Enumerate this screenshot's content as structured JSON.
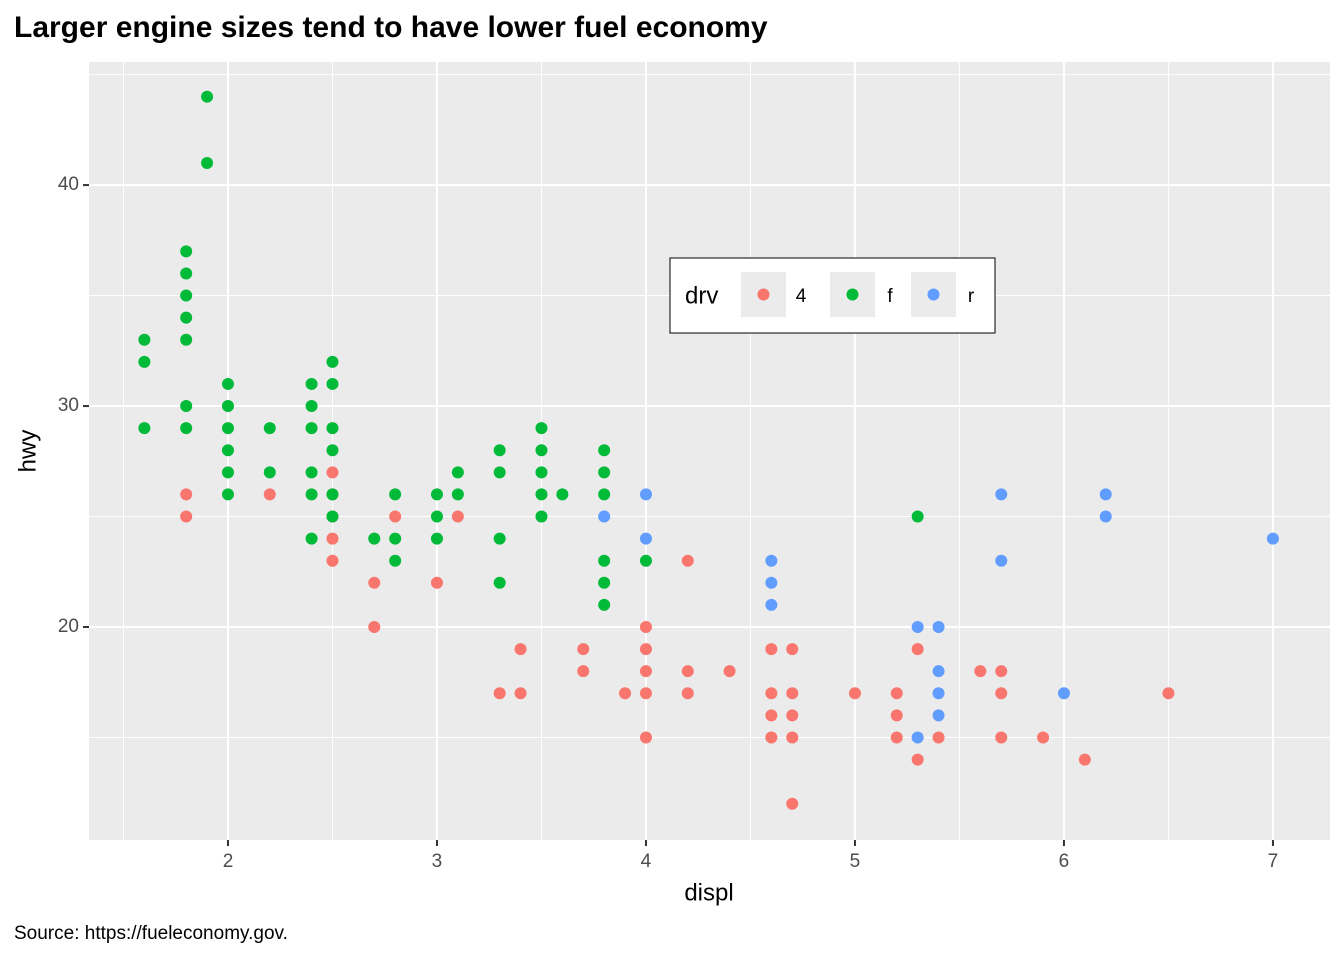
{
  "chart_data": {
    "type": "scatter",
    "title": "Larger engine sizes tend to have lower fuel economy",
    "caption": "Source: https://fueleconomy.gov.",
    "x_label": "displ",
    "y_label": "hwy",
    "xlim": [
      1.335,
      7.273
    ],
    "ylim": [
      10.36,
      45.57
    ],
    "xticks": [
      2,
      3,
      4,
      5,
      6,
      7
    ],
    "yticks": [
      20,
      30,
      40
    ],
    "x_minor_ticks": [
      1.5,
      2.5,
      3.5,
      4.5,
      5.5,
      6.5
    ],
    "y_minor_ticks": [
      15,
      25,
      35,
      45
    ],
    "grid": true,
    "legend_title": "drv",
    "legend_position": "inside",
    "series": [
      {
        "name": "4",
        "color": "#F8766D",
        "x": [
          1.8,
          1.8,
          2.2,
          2.5,
          2.5,
          2.5,
          2.5,
          2.5,
          2.7,
          2.7,
          2.8,
          3.0,
          3.1,
          3.3,
          3.4,
          3.4,
          3.7,
          3.7,
          3.9,
          4.0,
          4.0,
          4.0,
          4.0,
          4.0,
          4.2,
          4.2,
          4.2,
          4.4,
          4.6,
          4.6,
          4.6,
          4.6,
          4.7,
          4.7,
          4.7,
          4.7,
          4.7,
          5.0,
          5.2,
          5.2,
          5.2,
          5.3,
          5.3,
          5.4,
          5.6,
          5.7,
          5.7,
          5.7,
          5.9,
          6.1,
          6.5
        ],
        "values": [
          26,
          25,
          26,
          27,
          26,
          25,
          24,
          23,
          22,
          20,
          25,
          22,
          25,
          17,
          19,
          17,
          19,
          18,
          17,
          20,
          19,
          18,
          17,
          15,
          23,
          18,
          17,
          18,
          19,
          17,
          16,
          15,
          19,
          17,
          16,
          15,
          12,
          17,
          17,
          16,
          15,
          19,
          14,
          15,
          18,
          18,
          17,
          15,
          15,
          14,
          17
        ]
      },
      {
        "name": "f",
        "color": "#00BA38",
        "x": [
          1.6,
          1.6,
          1.6,
          1.8,
          1.8,
          1.8,
          1.8,
          1.8,
          1.8,
          1.8,
          1.9,
          1.9,
          2.0,
          2.0,
          2.0,
          2.0,
          2.0,
          2.0,
          2.2,
          2.2,
          2.4,
          2.4,
          2.4,
          2.4,
          2.4,
          2.4,
          2.5,
          2.5,
          2.5,
          2.5,
          2.5,
          2.5,
          2.7,
          2.8,
          2.8,
          2.8,
          3.0,
          3.0,
          3.0,
          3.1,
          3.1,
          3.3,
          3.3,
          3.3,
          3.3,
          3.5,
          3.5,
          3.5,
          3.5,
          3.5,
          3.6,
          3.8,
          3.8,
          3.8,
          3.8,
          3.8,
          3.8,
          4.0,
          5.3
        ],
        "values": [
          33,
          32,
          29,
          37,
          36,
          35,
          34,
          33,
          30,
          29,
          44,
          41,
          31,
          30,
          29,
          28,
          27,
          26,
          29,
          27,
          31,
          30,
          29,
          27,
          26,
          24,
          32,
          31,
          29,
          28,
          26,
          25,
          24,
          26,
          24,
          23,
          26,
          25,
          24,
          27,
          26,
          28,
          27,
          24,
          22,
          29,
          28,
          27,
          26,
          25,
          26,
          28,
          27,
          26,
          23,
          22,
          21,
          23,
          25
        ]
      },
      {
        "name": "r",
        "color": "#619CFF",
        "x": [
          3.8,
          4.0,
          4.0,
          4.6,
          4.6,
          4.6,
          5.3,
          5.3,
          5.4,
          5.4,
          5.4,
          5.4,
          5.7,
          5.7,
          6.0,
          6.2,
          6.2,
          7.0
        ],
        "values": [
          25,
          26,
          24,
          23,
          22,
          21,
          20,
          15,
          20,
          18,
          17,
          16,
          26,
          23,
          17,
          26,
          25,
          24
        ]
      }
    ]
  }
}
